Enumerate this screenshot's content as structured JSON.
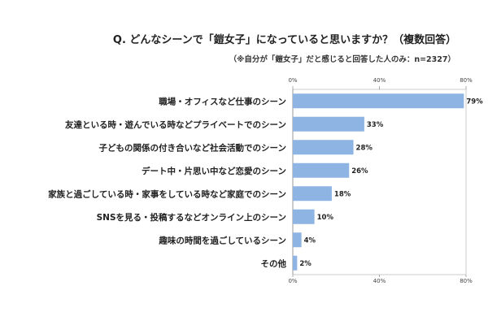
{
  "header": {
    "title": "Q. どんなシーンで「鎧女子」になっていると思いますか？（複数回答）",
    "subtitle": "（※自分が「鎧女子」だと感じると回答した人のみ：n=2327）"
  },
  "chart_data": {
    "type": "bar",
    "orientation": "horizontal",
    "title": "Q. どんなシーンで「鎧女子」になっていると思いますか？（複数回答）",
    "subtitle": "（※自分が「鎧女子」だと感じると回答した人のみ：n=2327）",
    "categories": [
      "職場・オフィスなど仕事のシーン",
      "友達といる時・遊んでいる時などプライベートでのシーン",
      "子どもの関係の付き合いなど社会活動でのシーン",
      "デート中・片思い中など恋愛のシーン",
      "家族と過ごしている時・家事をしている時など家庭でのシーン",
      "SNSを見る・投稿するなどオンライン上のシーン",
      "趣味の時間を過ごしているシーン",
      "その他"
    ],
    "values": [
      79,
      33,
      28,
      26,
      18,
      10,
      4,
      2
    ],
    "value_labels": [
      "79%",
      "33%",
      "28%",
      "26%",
      "18%",
      "10%",
      "4%",
      "2%"
    ],
    "xlim": [
      0,
      80
    ],
    "ticks": [
      "0%",
      "40%",
      "80%"
    ],
    "bar_color": "#8DB4E2",
    "grid": false
  }
}
